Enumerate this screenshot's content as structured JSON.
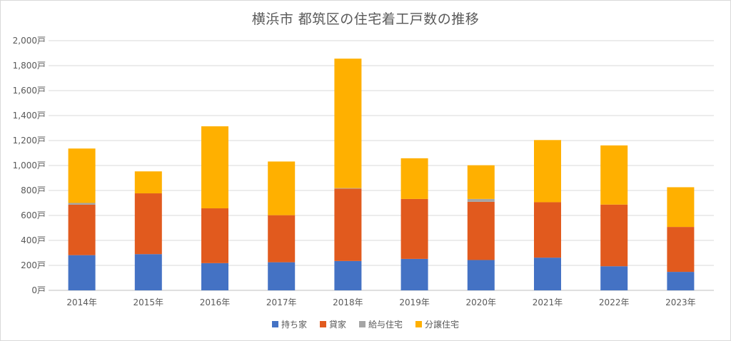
{
  "chart_data": {
    "type": "bar",
    "stacked": true,
    "title": "横浜市 都筑区の住宅着工戸数の推移",
    "categories": [
      "2014年",
      "2015年",
      "2016年",
      "2017年",
      "2018年",
      "2019年",
      "2020年",
      "2021年",
      "2022年",
      "2023年"
    ],
    "y_tick_labels": [
      "0戸",
      "200戸",
      "400戸",
      "600戸",
      "800戸",
      "1,000戸",
      "1,200戸",
      "1,400戸",
      "1,600戸",
      "1,800戸",
      "2,000戸"
    ],
    "ylim": [
      0,
      2000
    ],
    "grid": true,
    "legend_position": "bottom",
    "series": [
      {
        "name": "持ち家",
        "color": "#4472c4",
        "values": [
          282,
          290,
          218,
          225,
          235,
          252,
          243,
          262,
          193,
          148
        ]
      },
      {
        "name": "貸家",
        "color": "#e15a1e",
        "values": [
          404,
          487,
          439,
          377,
          580,
          480,
          466,
          444,
          494,
          360
        ]
      },
      {
        "name": "給与住宅",
        "color": "#a5a5a5",
        "values": [
          14,
          0,
          0,
          0,
          4,
          0,
          23,
          0,
          0,
          0
        ]
      },
      {
        "name": "分譲住宅",
        "color": "#ffb000",
        "values": [
          436,
          176,
          657,
          430,
          1037,
          326,
          270,
          498,
          474,
          318
        ]
      }
    ]
  }
}
